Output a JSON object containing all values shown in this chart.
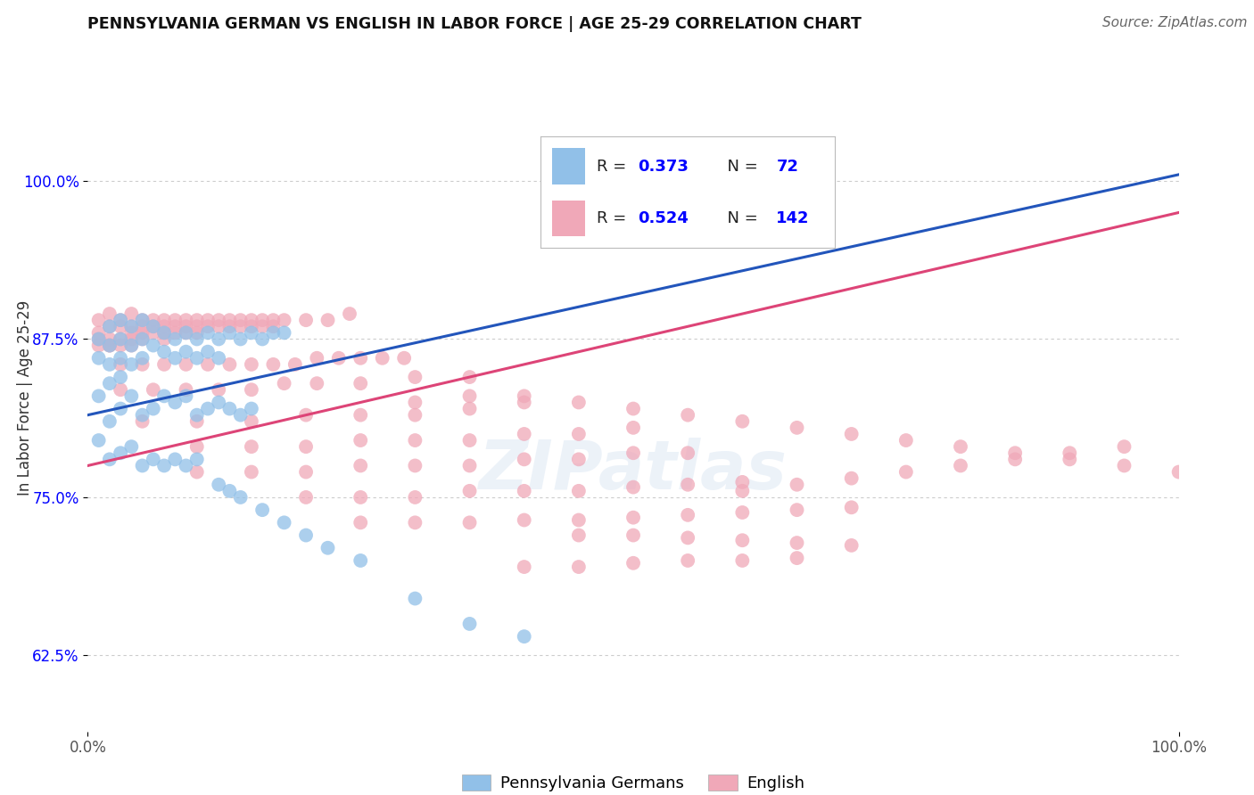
{
  "title": "PENNSYLVANIA GERMAN VS ENGLISH IN LABOR FORCE | AGE 25-29 CORRELATION CHART",
  "source": "Source: ZipAtlas.com",
  "ylabel": "In Labor Force | Age 25-29",
  "yticks": [
    "62.5%",
    "75.0%",
    "87.5%",
    "100.0%"
  ],
  "ytick_vals": [
    0.625,
    0.75,
    0.875,
    1.0
  ],
  "xlim": [
    0.0,
    1.0
  ],
  "ylim": [
    0.565,
    1.055
  ],
  "r_value_color": "#0000ff",
  "blue_color": "#91c0e8",
  "pink_color": "#f0a8b8",
  "blue_line_color": "#2255bb",
  "pink_line_color": "#dd4477",
  "blue_r": 0.373,
  "blue_n": 72,
  "pink_r": 0.524,
  "pink_n": 142,
  "blue_points": [
    [
      0.01,
      0.875
    ],
    [
      0.01,
      0.86
    ],
    [
      0.01,
      0.83
    ],
    [
      0.02,
      0.885
    ],
    [
      0.02,
      0.87
    ],
    [
      0.02,
      0.855
    ],
    [
      0.02,
      0.84
    ],
    [
      0.03,
      0.89
    ],
    [
      0.03,
      0.875
    ],
    [
      0.03,
      0.86
    ],
    [
      0.03,
      0.845
    ],
    [
      0.04,
      0.885
    ],
    [
      0.04,
      0.87
    ],
    [
      0.04,
      0.855
    ],
    [
      0.05,
      0.89
    ],
    [
      0.05,
      0.875
    ],
    [
      0.05,
      0.86
    ],
    [
      0.06,
      0.885
    ],
    [
      0.06,
      0.87
    ],
    [
      0.07,
      0.88
    ],
    [
      0.07,
      0.865
    ],
    [
      0.08,
      0.875
    ],
    [
      0.08,
      0.86
    ],
    [
      0.09,
      0.88
    ],
    [
      0.09,
      0.865
    ],
    [
      0.1,
      0.875
    ],
    [
      0.1,
      0.86
    ],
    [
      0.11,
      0.88
    ],
    [
      0.11,
      0.865
    ],
    [
      0.12,
      0.875
    ],
    [
      0.12,
      0.86
    ],
    [
      0.13,
      0.88
    ],
    [
      0.14,
      0.875
    ],
    [
      0.15,
      0.88
    ],
    [
      0.16,
      0.875
    ],
    [
      0.17,
      0.88
    ],
    [
      0.18,
      0.88
    ],
    [
      0.02,
      0.81
    ],
    [
      0.03,
      0.82
    ],
    [
      0.04,
      0.83
    ],
    [
      0.05,
      0.815
    ],
    [
      0.06,
      0.82
    ],
    [
      0.07,
      0.83
    ],
    [
      0.08,
      0.825
    ],
    [
      0.09,
      0.83
    ],
    [
      0.1,
      0.815
    ],
    [
      0.11,
      0.82
    ],
    [
      0.12,
      0.825
    ],
    [
      0.13,
      0.82
    ],
    [
      0.14,
      0.815
    ],
    [
      0.15,
      0.82
    ],
    [
      0.01,
      0.795
    ],
    [
      0.02,
      0.78
    ],
    [
      0.03,
      0.785
    ],
    [
      0.04,
      0.79
    ],
    [
      0.05,
      0.775
    ],
    [
      0.06,
      0.78
    ],
    [
      0.07,
      0.775
    ],
    [
      0.08,
      0.78
    ],
    [
      0.09,
      0.775
    ],
    [
      0.1,
      0.78
    ],
    [
      0.12,
      0.76
    ],
    [
      0.13,
      0.755
    ],
    [
      0.14,
      0.75
    ],
    [
      0.16,
      0.74
    ],
    [
      0.18,
      0.73
    ],
    [
      0.2,
      0.72
    ],
    [
      0.22,
      0.71
    ],
    [
      0.25,
      0.7
    ],
    [
      0.3,
      0.67
    ],
    [
      0.35,
      0.65
    ],
    [
      0.4,
      0.64
    ]
  ],
  "pink_points": [
    [
      0.01,
      0.89
    ],
    [
      0.01,
      0.88
    ],
    [
      0.01,
      0.875
    ],
    [
      0.01,
      0.87
    ],
    [
      0.02,
      0.895
    ],
    [
      0.02,
      0.885
    ],
    [
      0.02,
      0.875
    ],
    [
      0.02,
      0.87
    ],
    [
      0.03,
      0.89
    ],
    [
      0.03,
      0.885
    ],
    [
      0.03,
      0.875
    ],
    [
      0.03,
      0.87
    ],
    [
      0.04,
      0.895
    ],
    [
      0.04,
      0.885
    ],
    [
      0.04,
      0.88
    ],
    [
      0.04,
      0.875
    ],
    [
      0.05,
      0.89
    ],
    [
      0.05,
      0.885
    ],
    [
      0.05,
      0.88
    ],
    [
      0.05,
      0.875
    ],
    [
      0.06,
      0.89
    ],
    [
      0.06,
      0.885
    ],
    [
      0.06,
      0.88
    ],
    [
      0.07,
      0.89
    ],
    [
      0.07,
      0.885
    ],
    [
      0.07,
      0.88
    ],
    [
      0.07,
      0.875
    ],
    [
      0.08,
      0.89
    ],
    [
      0.08,
      0.885
    ],
    [
      0.08,
      0.88
    ],
    [
      0.09,
      0.89
    ],
    [
      0.09,
      0.885
    ],
    [
      0.09,
      0.88
    ],
    [
      0.1,
      0.89
    ],
    [
      0.1,
      0.885
    ],
    [
      0.1,
      0.88
    ],
    [
      0.11,
      0.89
    ],
    [
      0.11,
      0.885
    ],
    [
      0.12,
      0.89
    ],
    [
      0.12,
      0.885
    ],
    [
      0.13,
      0.89
    ],
    [
      0.13,
      0.885
    ],
    [
      0.14,
      0.89
    ],
    [
      0.14,
      0.885
    ],
    [
      0.15,
      0.89
    ],
    [
      0.15,
      0.885
    ],
    [
      0.16,
      0.89
    ],
    [
      0.16,
      0.885
    ],
    [
      0.17,
      0.89
    ],
    [
      0.17,
      0.885
    ],
    [
      0.18,
      0.89
    ],
    [
      0.2,
      0.89
    ],
    [
      0.22,
      0.89
    ],
    [
      0.24,
      0.895
    ],
    [
      0.03,
      0.855
    ],
    [
      0.05,
      0.855
    ],
    [
      0.07,
      0.855
    ],
    [
      0.09,
      0.855
    ],
    [
      0.11,
      0.855
    ],
    [
      0.13,
      0.855
    ],
    [
      0.15,
      0.855
    ],
    [
      0.17,
      0.855
    ],
    [
      0.19,
      0.855
    ],
    [
      0.21,
      0.86
    ],
    [
      0.23,
      0.86
    ],
    [
      0.25,
      0.86
    ],
    [
      0.27,
      0.86
    ],
    [
      0.29,
      0.86
    ],
    [
      0.03,
      0.835
    ],
    [
      0.06,
      0.835
    ],
    [
      0.09,
      0.835
    ],
    [
      0.12,
      0.835
    ],
    [
      0.15,
      0.835
    ],
    [
      0.18,
      0.84
    ],
    [
      0.21,
      0.84
    ],
    [
      0.25,
      0.84
    ],
    [
      0.3,
      0.845
    ],
    [
      0.35,
      0.845
    ],
    [
      0.05,
      0.81
    ],
    [
      0.1,
      0.81
    ],
    [
      0.15,
      0.81
    ],
    [
      0.2,
      0.815
    ],
    [
      0.25,
      0.815
    ],
    [
      0.3,
      0.815
    ],
    [
      0.35,
      0.82
    ],
    [
      0.4,
      0.825
    ],
    [
      0.1,
      0.79
    ],
    [
      0.15,
      0.79
    ],
    [
      0.2,
      0.79
    ],
    [
      0.25,
      0.795
    ],
    [
      0.3,
      0.795
    ],
    [
      0.35,
      0.795
    ],
    [
      0.4,
      0.8
    ],
    [
      0.45,
      0.8
    ],
    [
      0.5,
      0.805
    ],
    [
      0.1,
      0.77
    ],
    [
      0.15,
      0.77
    ],
    [
      0.2,
      0.77
    ],
    [
      0.25,
      0.775
    ],
    [
      0.3,
      0.775
    ],
    [
      0.35,
      0.775
    ],
    [
      0.4,
      0.78
    ],
    [
      0.45,
      0.78
    ],
    [
      0.5,
      0.785
    ],
    [
      0.55,
      0.785
    ],
    [
      0.2,
      0.75
    ],
    [
      0.25,
      0.75
    ],
    [
      0.3,
      0.75
    ],
    [
      0.35,
      0.755
    ],
    [
      0.4,
      0.755
    ],
    [
      0.45,
      0.755
    ],
    [
      0.5,
      0.758
    ],
    [
      0.55,
      0.76
    ],
    [
      0.6,
      0.762
    ],
    [
      0.25,
      0.73
    ],
    [
      0.3,
      0.73
    ],
    [
      0.35,
      0.73
    ],
    [
      0.4,
      0.732
    ],
    [
      0.45,
      0.732
    ],
    [
      0.5,
      0.734
    ],
    [
      0.55,
      0.736
    ],
    [
      0.6,
      0.738
    ],
    [
      0.65,
      0.74
    ],
    [
      0.7,
      0.742
    ],
    [
      0.02,
      0.87
    ],
    [
      0.04,
      0.87
    ],
    [
      0.3,
      0.825
    ],
    [
      0.35,
      0.83
    ],
    [
      0.4,
      0.83
    ],
    [
      0.45,
      0.825
    ],
    [
      0.5,
      0.82
    ],
    [
      0.55,
      0.815
    ],
    [
      0.6,
      0.81
    ],
    [
      0.65,
      0.805
    ],
    [
      0.7,
      0.8
    ],
    [
      0.75,
      0.795
    ],
    [
      0.8,
      0.79
    ],
    [
      0.85,
      0.785
    ],
    [
      0.9,
      0.78
    ],
    [
      0.95,
      0.775
    ],
    [
      1.0,
      0.77
    ],
    [
      0.6,
      0.755
    ],
    [
      0.65,
      0.76
    ],
    [
      0.7,
      0.765
    ],
    [
      0.75,
      0.77
    ],
    [
      0.8,
      0.775
    ],
    [
      0.85,
      0.78
    ],
    [
      0.9,
      0.785
    ],
    [
      0.95,
      0.79
    ],
    [
      0.45,
      0.72
    ],
    [
      0.5,
      0.72
    ],
    [
      0.55,
      0.718
    ],
    [
      0.6,
      0.716
    ],
    [
      0.65,
      0.714
    ],
    [
      0.7,
      0.712
    ],
    [
      0.4,
      0.695
    ],
    [
      0.45,
      0.695
    ],
    [
      0.5,
      0.698
    ],
    [
      0.55,
      0.7
    ],
    [
      0.6,
      0.7
    ],
    [
      0.65,
      0.702
    ]
  ]
}
